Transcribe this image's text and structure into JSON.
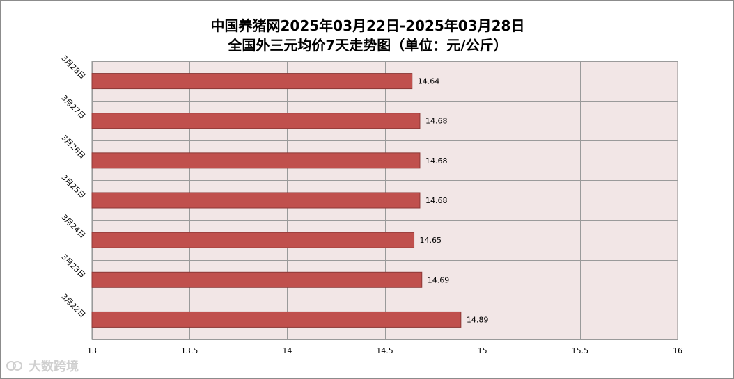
{
  "chart": {
    "title_line1": "中国养猪网2025年03月22日-2025年03月28日",
    "title_line2": "全国外三元均价7天走势图（单位：元/公斤）"
  },
  "chart_data": {
    "type": "bar",
    "orientation": "horizontal",
    "title": "中国养猪网2025年03月22日-2025年03月28日 全国外三元均价7天走势图（单位：元/公斤）",
    "categories": [
      "3月28日",
      "3月27日",
      "3月26日",
      "3月25日",
      "3月24日",
      "3月23日",
      "3月22日"
    ],
    "values": [
      14.64,
      14.68,
      14.68,
      14.68,
      14.65,
      14.69,
      14.89
    ],
    "value_labels": [
      "14.64",
      "14.68",
      "14.68",
      "14.68",
      "14.65",
      "14.69",
      "14.89"
    ],
    "xlim": [
      13,
      16
    ],
    "x_ticks": [
      13,
      13.5,
      14,
      14.5,
      15,
      15.5,
      16
    ],
    "x_tick_labels": [
      "13",
      "13.5",
      "14",
      "14.5",
      "15",
      "15.5",
      "16"
    ],
    "xlabel": "",
    "ylabel": "",
    "grid": true,
    "legend": "none",
    "colors": {
      "bar_fill": "#c0504d",
      "bar_stroke": "#8c3836",
      "plot_background": "#f2e6e6",
      "grid": "#9a9a9a"
    }
  },
  "watermark": {
    "text": "大数跨境",
    "icon": "logo-icon"
  }
}
